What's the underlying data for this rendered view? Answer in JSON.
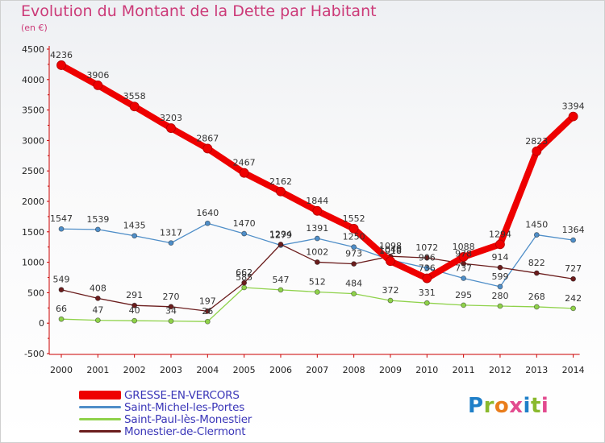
{
  "title": "Evolution du Montant de la Dette par Habitant",
  "subtitle": "(en €)",
  "logo": {
    "text": "Proxiti",
    "colors": [
      "#1f7fc8",
      "#8ab92d",
      "#e97d1c",
      "#e24b8f",
      "#1f7fc8",
      "#8ab92d",
      "#e24b8f"
    ]
  },
  "chart_data": {
    "type": "line",
    "x": [
      "2000",
      "2001",
      "2002",
      "2003",
      "2004",
      "2005",
      "2006",
      "2007",
      "2008",
      "2009",
      "2010",
      "2011",
      "2012",
      "2013",
      "2014"
    ],
    "ylim": [
      -500,
      4500
    ],
    "yticks": [
      -500,
      0,
      500,
      1000,
      1500,
      2000,
      2500,
      3000,
      3500,
      4000,
      4500
    ],
    "grid": false,
    "legend_position": "bottom-left",
    "series": [
      {
        "name": "GRESSE-EN-VERCORS",
        "color": "#ee0000",
        "values": [
          4236,
          3906,
          3558,
          3203,
          2867,
          2467,
          2162,
          1844,
          1552,
          1018,
          736,
          1088,
          1294,
          2823,
          3394
        ]
      },
      {
        "name": "Saint-Michel-les-Portes",
        "color": "#4f8ec8",
        "values": [
          1547,
          1539,
          1435,
          1317,
          1640,
          1470,
          1279,
          1391,
          1250,
          1040,
          906,
          737,
          599,
          1450,
          1364
        ]
      },
      {
        "name": "Saint-Paul-lès-Monestier",
        "color": "#8fd24a",
        "values": [
          66,
          47,
          40,
          34,
          26,
          585,
          547,
          512,
          484,
          372,
          331,
          295,
          280,
          268,
          242
        ]
      },
      {
        "name": "Monestier-de-Clermont",
        "color": "#6b1d1d",
        "values": [
          549,
          408,
          291,
          270,
          197,
          662,
          1294,
          1002,
          973,
          1098,
          1072,
          978,
          914,
          822,
          727
        ]
      }
    ],
    "labels": [
      [
        "4236",
        "3906",
        "3558",
        "3203",
        "2867",
        "2467",
        "2162",
        "1844",
        "1552",
        "1018",
        "736",
        "1088",
        "1294",
        "2823",
        "3394"
      ],
      [
        "1547",
        "1539",
        "1435",
        "1317",
        "1640",
        "1470",
        "1279",
        "1391",
        "1250",
        "1040",
        "906",
        "737",
        "599",
        "1450",
        "1364"
      ],
      [
        "66",
        "47",
        "40",
        "34",
        "26",
        "585",
        "547",
        "512",
        "484",
        "372",
        "331",
        "295",
        "280",
        "268",
        "242"
      ],
      [
        "549",
        "408",
        "291",
        "270",
        "197",
        "662",
        "1294",
        "1002",
        "973",
        "1098",
        "1072",
        "978",
        "914",
        "822",
        "727"
      ]
    ]
  }
}
